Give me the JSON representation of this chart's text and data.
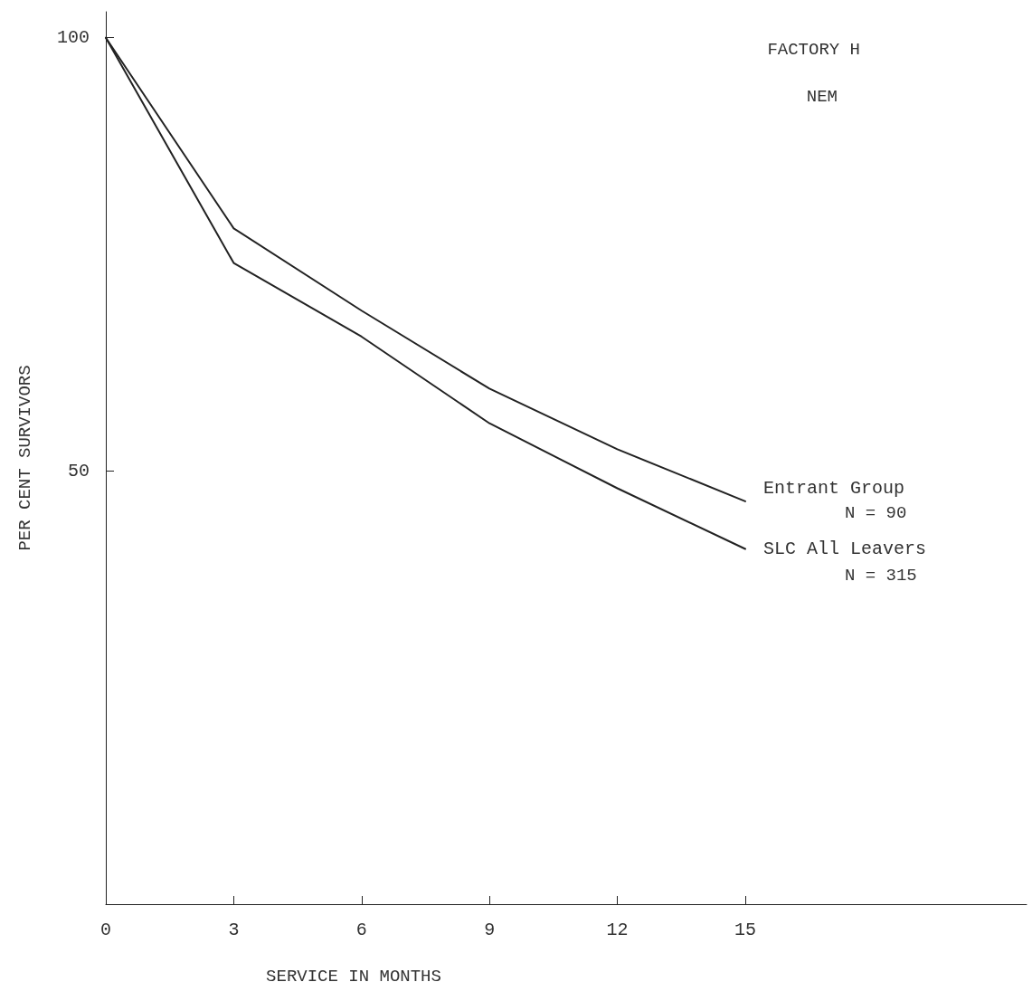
{
  "chart_data": {
    "type": "line",
    "title": "FACTORY H",
    "subtitle": "NEM",
    "xlabel": "SERVICE IN MONTHS",
    "ylabel": "PER CENT SURVIVORS",
    "x": [
      0,
      3,
      6,
      9,
      12,
      15
    ],
    "series": [
      {
        "name": "Entrant Group",
        "color": "#222222",
        "values": [
          100,
          78,
          68.5,
          59.5,
          52.5,
          46.5
        ]
      },
      {
        "name": "SLC All Leavers",
        "color": "#222222",
        "values": [
          100,
          74,
          65.5,
          55.5,
          48,
          41
        ]
      }
    ],
    "annotations": [
      "N = 90",
      "N = 315"
    ],
    "xlim": [
      0,
      21.6
    ],
    "xticks": [
      0,
      3,
      6,
      9,
      12,
      15
    ],
    "ylim": [
      0,
      103
    ],
    "yticks": [
      {
        "value": 0,
        "label": null
      },
      50,
      100
    ],
    "grid": false,
    "legend": false,
    "marker": "none",
    "line_style": "solid"
  }
}
